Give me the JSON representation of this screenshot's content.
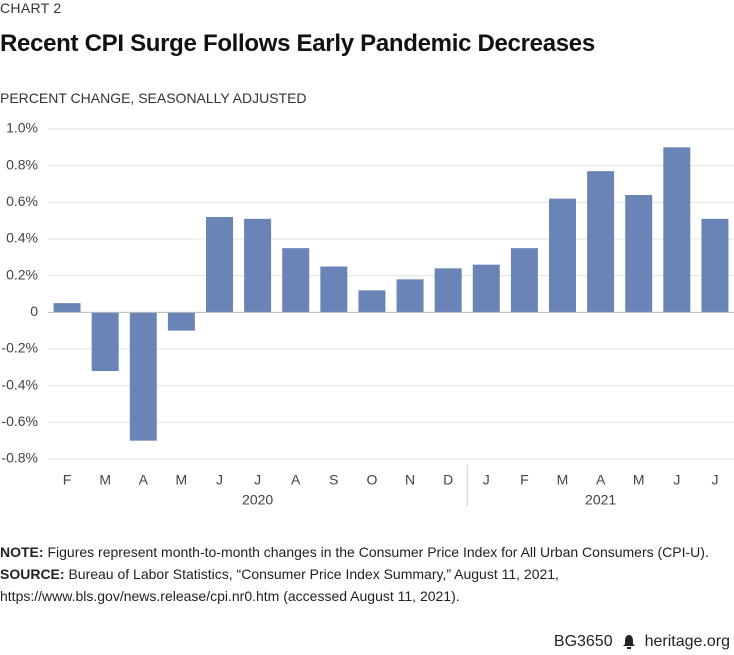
{
  "chart_data": {
    "type": "bar",
    "kicker": "CHART 2",
    "title": "Recent CPI Surge Follows Early Pandemic Decreases",
    "y_label": "PERCENT CHANGE, SEASONALLY ADJUSTED",
    "color": "#6a84b8",
    "grid": true,
    "ylim": [
      -0.8,
      1.0
    ],
    "yticks": [
      {
        "value": -0.8,
        "label": "-0.8%"
      },
      {
        "value": -0.6,
        "label": "-0.6%"
      },
      {
        "value": -0.4,
        "label": "-0.4%"
      },
      {
        "value": -0.2,
        "label": "-0.2%"
      },
      0,
      {
        "value": 0.2,
        "label": "0.2%"
      },
      {
        "value": 0.4,
        "label": "0.4%"
      },
      {
        "value": 0.6,
        "label": "0.6%"
      },
      {
        "value": 0.8,
        "label": "0.8%"
      },
      {
        "value": 1.0,
        "label": "1.0%"
      }
    ],
    "groups": [
      {
        "label": "2020",
        "categories": [
          "F",
          "M",
          "A",
          "M",
          "J",
          "J",
          "A",
          "S",
          "O",
          "N",
          "D"
        ],
        "values": [
          0.05,
          -0.32,
          -0.7,
          -0.1,
          0.52,
          0.51,
          0.35,
          0.25,
          0.12,
          0.18,
          0.24
        ]
      },
      {
        "label": "2021",
        "categories": [
          "J",
          "F",
          "M",
          "A",
          "M",
          "J",
          "J"
        ],
        "values": [
          0.26,
          0.35,
          0.62,
          0.77,
          0.64,
          0.9,
          0.51
        ]
      }
    ],
    "notes": [
      {
        "label": "NOTE:",
        "text": "Figures represent month-to-month changes in the Consumer Price Index for All Urban Consumers (CPI-U)."
      },
      {
        "label": "SOURCE:",
        "text": "Bureau of Labor Statistics, “Consumer Price Index Summary,” August 11, 2021, https://www.bls.gov/news.release/cpi.nr0.htm (accessed August 11, 2021)."
      }
    ],
    "footer": {
      "code": "BG3650",
      "site": "heritage.org"
    }
  }
}
